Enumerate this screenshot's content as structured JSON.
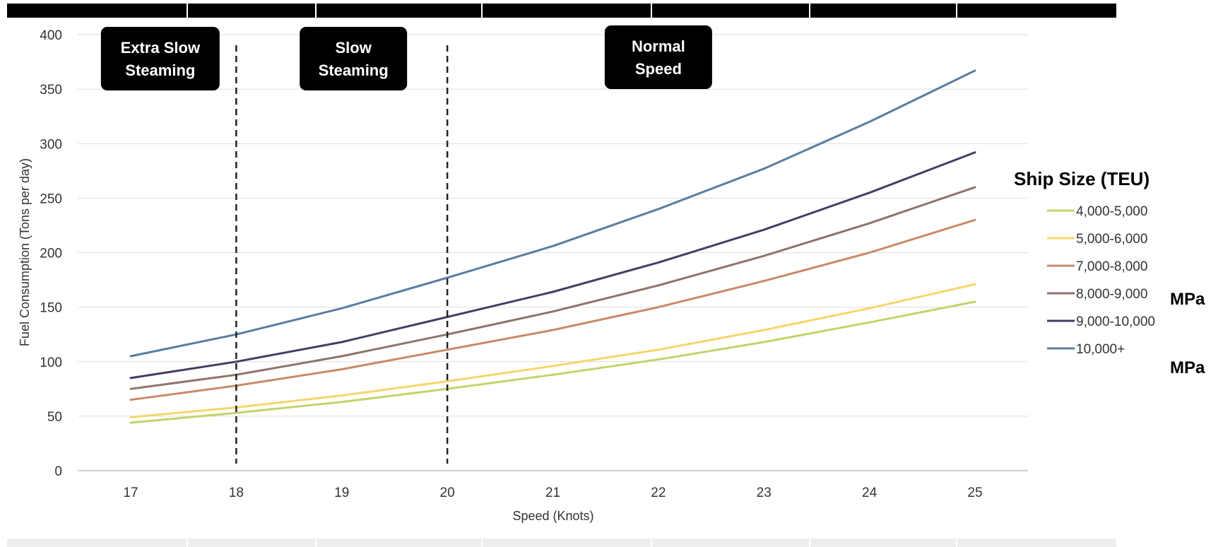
{
  "chart_data": {
    "type": "line",
    "title": "",
    "xlabel": "Speed (Knots)",
    "ylabel": "Fuel Consumption (Tons per day)",
    "x": [
      17,
      18,
      19,
      20,
      21,
      22,
      23,
      24,
      25
    ],
    "xlim": [
      17,
      25
    ],
    "ylim": [
      0,
      400
    ],
    "y_ticks": [
      0,
      50,
      100,
      150,
      200,
      250,
      300,
      350,
      400
    ],
    "grid": "horizontal",
    "legend": {
      "title": "Ship Size (TEU)",
      "placement": "right"
    },
    "series": [
      {
        "name": "4,000-5,000",
        "color": "#c5d26a",
        "values": [
          44,
          53,
          63,
          75,
          88,
          102,
          118,
          136,
          155
        ]
      },
      {
        "name": "5,000-6,000",
        "color": "#f7d56a",
        "values": [
          49,
          58,
          69,
          82,
          96,
          111,
          129,
          149,
          171
        ]
      },
      {
        "name": "7,000-8,000",
        "color": "#c98967",
        "values": [
          65,
          78,
          93,
          111,
          129,
          150,
          174,
          200,
          230
        ]
      },
      {
        "name": "8,000-9,000",
        "color": "#8e7468",
        "values": [
          75,
          88,
          105,
          125,
          146,
          170,
          197,
          227,
          260
        ]
      },
      {
        "name": "9,000-10,000",
        "color": "#3f4162",
        "values": [
          85,
          100,
          118,
          141,
          164,
          191,
          221,
          255,
          292
        ]
      },
      {
        "name": "10,000+",
        "color": "#5a7d9f",
        "values": [
          105,
          125,
          149,
          177,
          206,
          240,
          277,
          320,
          367
        ]
      }
    ],
    "vertical_markers": [
      18,
      20
    ],
    "annotations": [
      {
        "lines": [
          "Extra Slow",
          "Steaming"
        ],
        "x_center": 17.28
      },
      {
        "lines": [
          "Slow",
          "Steaming"
        ],
        "x_center": 19.11
      },
      {
        "lines": [
          "Normal",
          "Speed"
        ],
        "x_center": 22.0
      }
    ]
  },
  "side_text": [
    "MPa",
    "MPa"
  ]
}
